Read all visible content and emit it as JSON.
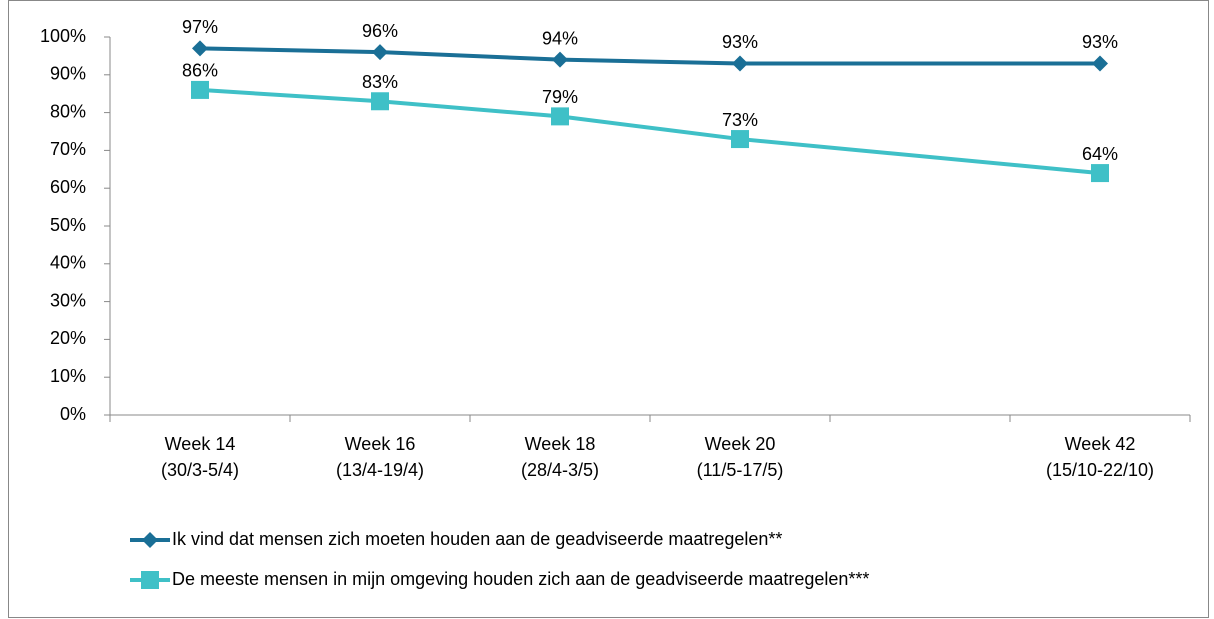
{
  "chart_data": {
    "type": "line",
    "categories": [
      "Week 14\n(30/3-5/4)",
      "Week 16\n(13/4-19/4)",
      "Week 18\n(28/4-3/5)",
      "Week 20\n(11/5-17/5)",
      null,
      "Week 42\n(15/10-22/10)"
    ],
    "series": [
      {
        "name": "Ik vind dat mensen zich moeten houden aan de geadviseerde maatregelen**",
        "color": "#1a6f96",
        "marker": "diamond",
        "values": [
          97,
          96,
          94,
          93,
          null,
          93
        ],
        "value_labels": [
          "97%",
          "96%",
          "94%",
          "93%",
          null,
          "93%"
        ]
      },
      {
        "name": "De meeste mensen in mijn omgeving houden zich aan de geadviseerde maatregelen***",
        "color": "#3fc0c7",
        "marker": "square",
        "values": [
          86,
          83,
          79,
          73,
          null,
          64
        ],
        "value_labels": [
          "86%",
          "83%",
          "79%",
          "73%",
          null,
          "64%"
        ]
      }
    ],
    "ylim": [
      0,
      100
    ],
    "yticks": [
      {
        "value": 0,
        "label": "0%"
      },
      {
        "value": 10,
        "label": "10%"
      },
      {
        "value": 20,
        "label": "20%"
      },
      {
        "value": 30,
        "label": "30%"
      },
      {
        "value": 40,
        "label": "40%"
      },
      {
        "value": 50,
        "label": "50%"
      },
      {
        "value": 60,
        "label": "60%"
      },
      {
        "value": 70,
        "label": "70%"
      },
      {
        "value": 80,
        "label": "80%"
      },
      {
        "value": 90,
        "label": "90%"
      },
      {
        "value": 100,
        "label": "100%"
      }
    ],
    "grid": false,
    "legend": "bottom"
  }
}
